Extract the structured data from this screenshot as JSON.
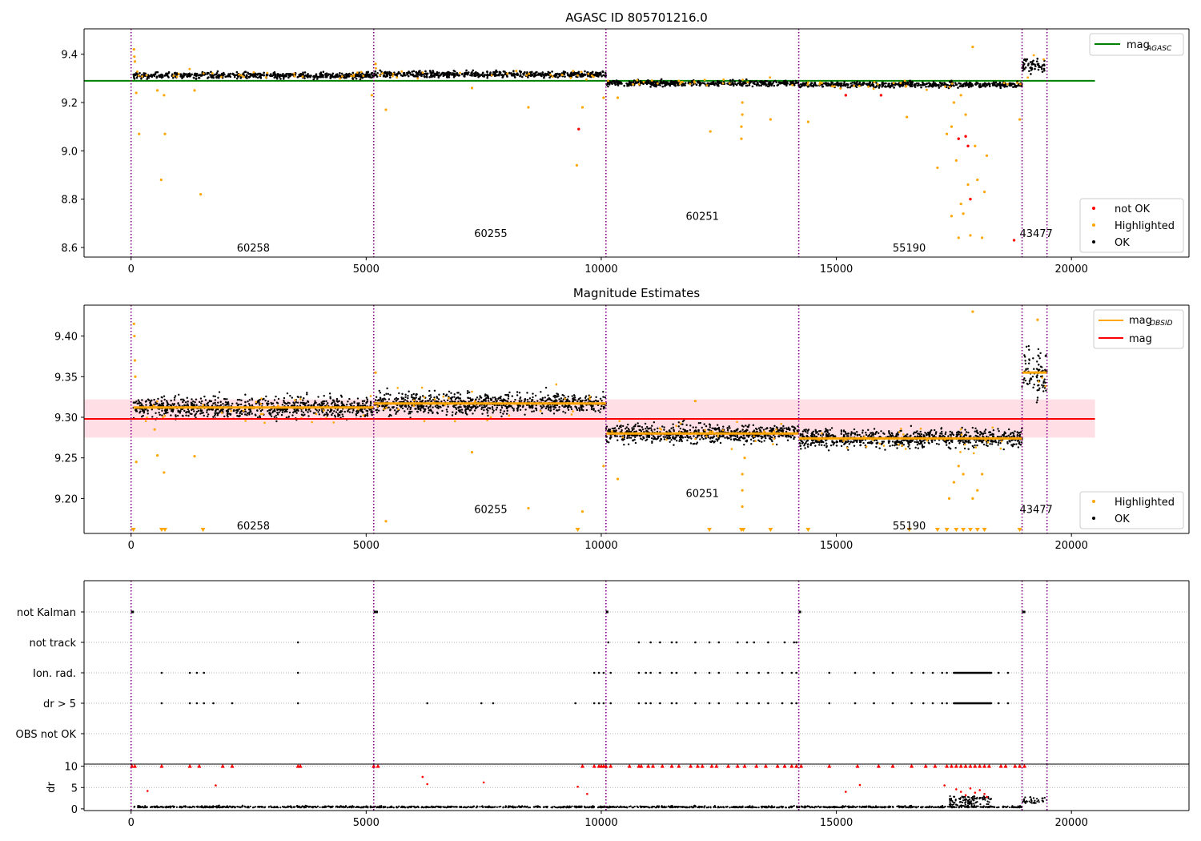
{
  "figure": {
    "title_top": "AGASC ID 805701216.0",
    "title_mid": "Magnitude Estimates"
  },
  "chart_data": [
    {
      "type": "scatter",
      "title": "AGASC ID 805701216.0",
      "xlabel": "",
      "ylabel": "",
      "xlim": [
        -1000,
        22500
      ],
      "ylim": [
        8.56,
        9.505
      ],
      "xticks": [
        0,
        5000,
        10000,
        15000,
        20000
      ],
      "yticks": [
        8.6,
        8.8,
        9.0,
        9.2,
        9.4
      ],
      "ytick_labels": [
        "8.6",
        "8.8",
        "9.0",
        "9.2",
        "9.4"
      ],
      "grid": false,
      "lines": [
        {
          "name": "mag_AGASC",
          "label_main": "mag",
          "label_sub": "AGASC",
          "y": 9.29,
          "x": [
            -1000,
            20500
          ],
          "color": "#008000"
        }
      ],
      "obs_boundaries": [
        0,
        5160,
        10100,
        14200,
        18950,
        19480
      ],
      "obsid_labels": [
        {
          "text": "60258",
          "x": 2600,
          "y": 8.6
        },
        {
          "text": "60255",
          "x": 7650,
          "y": 8.66
        },
        {
          "text": "60251",
          "x": 12150,
          "y": 8.73
        },
        {
          "text": "55190",
          "x": 16550,
          "y": 8.6
        },
        {
          "text": "43477",
          "x": 19250,
          "y": 8.66
        }
      ],
      "segments": [
        {
          "x0": 50,
          "x1": 5160,
          "mean": 9.312,
          "spread": 0.009
        },
        {
          "x0": 5160,
          "x1": 10100,
          "mean": 9.317,
          "spread": 0.009
        },
        {
          "x0": 10100,
          "x1": 14200,
          "mean": 9.28,
          "spread": 0.008
        },
        {
          "x0": 14200,
          "x1": 18950,
          "mean": 9.274,
          "spread": 0.008
        },
        {
          "x0": 18950,
          "x1": 19480,
          "mean": 9.355,
          "spread": 0.02
        }
      ],
      "highlighted_points": [
        [
          60,
          9.42
        ],
        [
          70,
          9.39
        ],
        [
          80,
          9.37
        ],
        [
          110,
          9.24
        ],
        [
          170,
          9.07
        ],
        [
          560,
          9.25
        ],
        [
          640,
          8.88
        ],
        [
          700,
          9.23
        ],
        [
          720,
          9.07
        ],
        [
          1480,
          8.82
        ],
        [
          1350,
          9.25
        ],
        [
          5120,
          9.23
        ],
        [
          5200,
          9.36
        ],
        [
          5420,
          9.17
        ],
        [
          7250,
          9.26
        ],
        [
          8450,
          9.18
        ],
        [
          9480,
          8.94
        ],
        [
          9600,
          9.18
        ],
        [
          10050,
          9.22
        ],
        [
          10350,
          9.22
        ],
        [
          12320,
          9.08
        ],
        [
          12980,
          9.05
        ],
        [
          12980,
          9.1
        ],
        [
          13000,
          9.15
        ],
        [
          13000,
          9.2
        ],
        [
          13600,
          9.13
        ],
        [
          14400,
          9.12
        ],
        [
          16500,
          9.14
        ],
        [
          17150,
          8.93
        ],
        [
          17350,
          9.07
        ],
        [
          17450,
          8.73
        ],
        [
          17550,
          8.96
        ],
        [
          17600,
          8.64
        ],
        [
          17650,
          8.78
        ],
        [
          17700,
          8.74
        ],
        [
          17800,
          8.86
        ],
        [
          17850,
          8.65
        ],
        [
          17900,
          9.43
        ],
        [
          17950,
          9.02
        ],
        [
          18000,
          8.88
        ],
        [
          18100,
          8.64
        ],
        [
          18150,
          8.83
        ],
        [
          18200,
          8.98
        ],
        [
          17450,
          9.1
        ],
        [
          17500,
          9.2
        ],
        [
          17650,
          9.23
        ],
        [
          17750,
          9.15
        ],
        [
          18900,
          9.13
        ]
      ],
      "notok_points": [
        [
          9520,
          9.09
        ],
        [
          15200,
          9.23
        ],
        [
          15950,
          9.23
        ],
        [
          17600,
          9.05
        ],
        [
          17750,
          9.06
        ],
        [
          17800,
          9.02
        ],
        [
          17850,
          8.8
        ],
        [
          18780,
          8.63
        ]
      ],
      "legends": [
        {
          "position": "top-right",
          "entries": [
            "mag_AGASC"
          ]
        },
        {
          "position": "bottom-right",
          "entries": [
            "not OK",
            "Highlighted",
            "OK"
          ]
        }
      ]
    },
    {
      "type": "scatter",
      "title": "Magnitude Estimates",
      "xlabel": "",
      "ylabel": "",
      "xlim": [
        -1000,
        22500
      ],
      "ylim": [
        9.157,
        9.438
      ],
      "xticks": [
        0,
        5000,
        10000,
        15000,
        20000
      ],
      "yticks": [
        9.2,
        9.25,
        9.3,
        9.35,
        9.4
      ],
      "ytick_labels": [
        "9.20",
        "9.25",
        "9.30",
        "9.35",
        "9.40"
      ],
      "grid": false,
      "lines": [
        {
          "name": "mag_OBSID",
          "label_main": "mag",
          "label_sub": "OBSID",
          "color": "#ffa500"
        },
        {
          "name": "mag",
          "label_main": "mag",
          "label_sub": "",
          "y": 9.298,
          "x": [
            -1000,
            20500
          ],
          "color": "#ff0000"
        }
      ],
      "mag_band": {
        "y0": 9.275,
        "y1": 9.322,
        "x": [
          -1000,
          20500
        ],
        "color": "#ffc0cb"
      },
      "obsid_labels": [
        {
          "text": "60258",
          "x": 2600,
          "y": 9.167
        },
        {
          "text": "60255",
          "x": 7650,
          "y": 9.187
        },
        {
          "text": "60251",
          "x": 12150,
          "y": 9.207
        },
        {
          "text": "55190",
          "x": 16550,
          "y": 9.167
        },
        {
          "text": "43477",
          "x": 19250,
          "y": 9.187
        }
      ],
      "highlighted_points": [
        [
          60,
          9.415
        ],
        [
          70,
          9.4
        ],
        [
          80,
          9.37
        ],
        [
          90,
          9.35
        ],
        [
          110,
          9.245
        ],
        [
          500,
          9.285
        ],
        [
          560,
          9.253
        ],
        [
          700,
          9.232
        ],
        [
          1350,
          9.252
        ],
        [
          5200,
          9.355
        ],
        [
          5420,
          9.172
        ],
        [
          7250,
          9.257
        ],
        [
          8450,
          9.188
        ],
        [
          9600,
          9.184
        ],
        [
          10050,
          9.24
        ],
        [
          10350,
          9.224
        ],
        [
          12000,
          9.32
        ],
        [
          13000,
          9.23
        ],
        [
          13000,
          9.21
        ],
        [
          13000,
          9.19
        ],
        [
          13050,
          9.25
        ],
        [
          17900,
          9.43
        ],
        [
          17400,
          9.2
        ],
        [
          17500,
          9.22
        ],
        [
          17600,
          9.24
        ],
        [
          17700,
          9.23
        ],
        [
          17900,
          9.2
        ],
        [
          18000,
          9.21
        ],
        [
          18100,
          9.23
        ],
        [
          19280,
          9.42
        ]
      ],
      "below_range_x": [
        50,
        650,
        720,
        1530,
        9500,
        12300,
        12980,
        13020,
        13600,
        14400,
        16550,
        17150,
        17350,
        17550,
        17700,
        17850,
        18000,
        18150,
        18900
      ],
      "legends": [
        {
          "position": "top-right",
          "entries": [
            "mag_OBSID",
            "mag"
          ]
        },
        {
          "position": "bottom-right",
          "entries": [
            "Highlighted",
            "OK"
          ]
        }
      ]
    },
    {
      "type": "scatter",
      "title": "",
      "xlabel": "",
      "ylabel": "",
      "xlim": [
        -1000,
        22500
      ],
      "categories": [
        "not Kalman",
        "not track",
        "Ion. rad.",
        "dr > 5",
        "OBS not OK"
      ],
      "events": {
        "not Kalman": [
          [
            0,
            60
          ],
          [
            5160,
            5250
          ],
          [
            10100,
            10150
          ],
          [
            14200,
            14250
          ],
          [
            18950,
            19020
          ]
        ],
        "not track": [
          3550,
          10150,
          10800,
          11050,
          11250,
          11500,
          11600,
          12000,
          12300,
          12500,
          12900,
          13100,
          13250,
          13550,
          13900,
          14100,
          14150
        ],
        "Ion. rad.": [
          650,
          1250,
          1400,
          1550,
          3550,
          9850,
          9950,
          10050,
          10200,
          10800,
          10950,
          11050,
          11250,
          11500,
          11600,
          12000,
          12300,
          12500,
          12900,
          13100,
          13350,
          13550,
          13850,
          14050,
          14150,
          14850,
          15400,
          15800,
          16200,
          16600,
          16850,
          17050,
          17250,
          17350,
          18450,
          18650
        ],
        "dr > 5": [
          650,
          1250,
          1400,
          1550,
          1750,
          2150,
          3550,
          6300,
          7450,
          7700,
          9450,
          9850,
          9950,
          10050,
          10200,
          10800,
          10950,
          11050,
          11250,
          11500,
          11600,
          12000,
          12300,
          12500,
          12900,
          13100,
          13350,
          13550,
          13850,
          14050,
          14150,
          14850,
          15400,
          15800,
          16200,
          16600,
          16850,
          17050,
          17250,
          17350,
          18450,
          18650
        ],
        "OBS not OK": []
      },
      "dense_ranges": {
        "Ion. rad.": [
          17500,
          18300
        ],
        "dr > 5": [
          17500,
          18300
        ]
      }
    },
    {
      "type": "scatter",
      "title": "",
      "xlabel": "",
      "ylabel": "dr",
      "xlim": [
        -1000,
        22500
      ],
      "ylim": [
        -0.4,
        10.5
      ],
      "xticks": [
        0,
        5000,
        10000,
        15000,
        20000
      ],
      "yticks": [
        0,
        5,
        10
      ],
      "ytick_labels": [
        "0",
        "5",
        "10"
      ],
      "clipped_red_x": [
        20,
        80,
        650,
        1250,
        1450,
        1950,
        2150,
        3550,
        3600,
        5160,
        5250,
        9600,
        9850,
        9950,
        10000,
        10050,
        10100,
        10200,
        10600,
        10800,
        10850,
        11000,
        11100,
        11300,
        11500,
        11650,
        11900,
        12050,
        12150,
        12350,
        12450,
        12700,
        12900,
        13050,
        13300,
        13500,
        13750,
        13900,
        14050,
        14150,
        14250,
        14850,
        15450,
        15900,
        16200,
        16600,
        16900,
        17100,
        17350,
        17450,
        17550,
        17650,
        17750,
        17850,
        17950,
        18050,
        18150,
        18250,
        18500,
        18600,
        18800,
        18900,
        19000
      ],
      "red_points": [
        [
          350,
          4.2
        ],
        [
          1800,
          5.5
        ],
        [
          6200,
          7.5
        ],
        [
          6300,
          5.8
        ],
        [
          7500,
          6.2
        ],
        [
          9500,
          5.2
        ],
        [
          9700,
          3.5
        ],
        [
          15200,
          4.0
        ],
        [
          15500,
          5.6
        ],
        [
          17300,
          5.5
        ],
        [
          17550,
          4.6
        ],
        [
          17650,
          4.0
        ],
        [
          17750,
          3.2
        ],
        [
          17850,
          4.8
        ],
        [
          17950,
          3.8
        ],
        [
          18050,
          4.4
        ],
        [
          18150,
          3.5
        ],
        [
          18200,
          2.8
        ]
      ]
    }
  ]
}
